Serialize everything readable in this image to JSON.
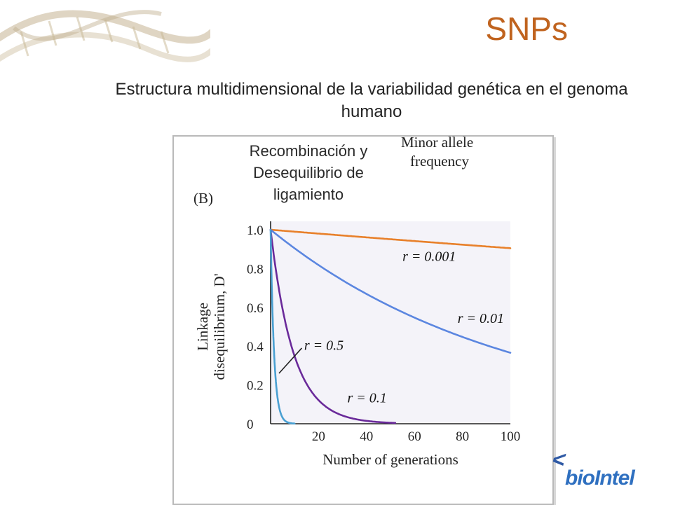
{
  "slide": {
    "title": "SNPs",
    "subtitle": "Estructura multidimensional de la variabilidad genética en el genoma humano",
    "callout": "Recombinación y Desequilibrio de ligamiento",
    "logo_text": "bioIntel"
  },
  "chart_data": {
    "type": "line",
    "panel_label": "(B)",
    "header_note": [
      "Minor allele",
      "frequency"
    ],
    "xlabel": "Number of generations",
    "ylabel": [
      "Linkage",
      "disequilibrium, D'"
    ],
    "xlim": [
      0,
      100
    ],
    "ylim": [
      0,
      1.0
    ],
    "x_ticks": [
      20,
      40,
      60,
      80,
      100
    ],
    "y_ticks": [
      0,
      0.2,
      0.4,
      0.6,
      0.8,
      1.0
    ],
    "x_tick_labels": [
      "20",
      "40",
      "60",
      "80",
      "100"
    ],
    "y_tick_labels": [
      "0",
      "0.2",
      "0.4",
      "0.6",
      "0.8",
      "1.0"
    ],
    "grid": false,
    "series": [
      {
        "name": "r = 0.001",
        "r": 0.001,
        "color": "#e8802a",
        "x_end": 100,
        "label_at": [
          55,
          0.84
        ]
      },
      {
        "name": "r = 0.01",
        "r": 0.01,
        "color": "#5b86e0",
        "x_end": 100,
        "label_at": [
          78,
          0.52
        ]
      },
      {
        "name": "r = 0.1",
        "r": 0.1,
        "color": "#6a2a9a",
        "x_end": 52,
        "label_at": [
          32,
          0.11
        ]
      },
      {
        "name": "r = 0.5",
        "r": 0.5,
        "color": "#4aa0d2",
        "x_end": 10,
        "label_at": [
          14,
          0.38
        ]
      }
    ]
  }
}
